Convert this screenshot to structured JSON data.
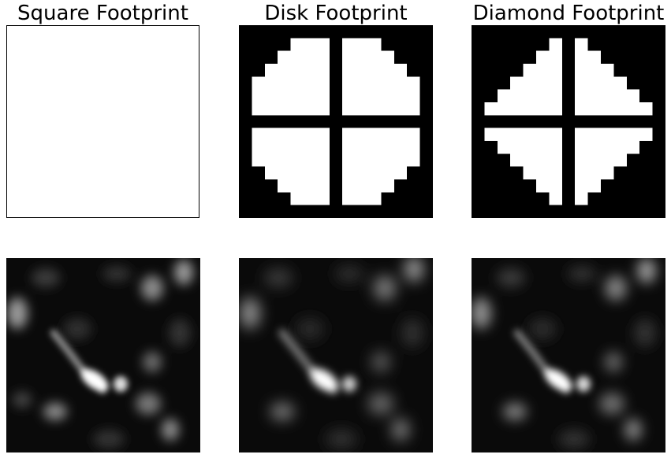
{
  "titles": {
    "square": "Square Footprint",
    "disk": "Disk Footprint",
    "diamond": "Diamond Footprint"
  },
  "colors": {
    "footprint_on": "#ffffff",
    "footprint_off": "#000000",
    "image_background": "#0a0a0a"
  }
}
